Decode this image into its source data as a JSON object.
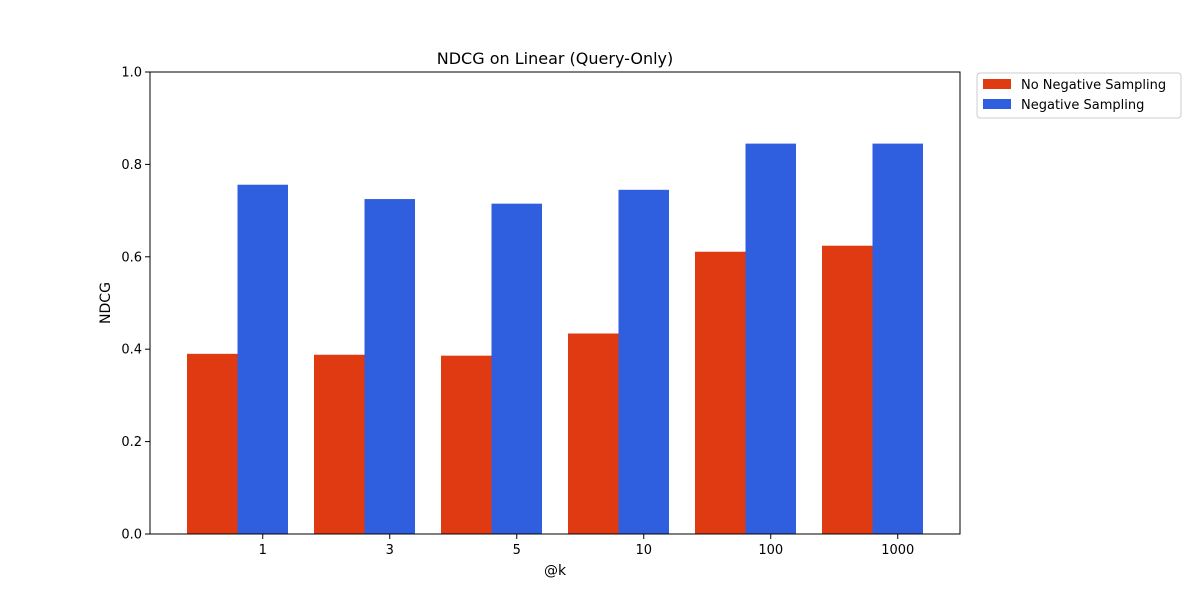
{
  "chart_data": {
    "type": "bar",
    "title": "NDCG on Linear (Query-Only)",
    "xlabel": "@k",
    "ylabel": "NDCG",
    "categories": [
      "1",
      "3",
      "5",
      "10",
      "100",
      "1000"
    ],
    "ylim": [
      0,
      1.0
    ],
    "yticks": [
      "0.0",
      "0.2",
      "0.4",
      "0.6",
      "0.8",
      "1.0"
    ],
    "grid": false,
    "legend_position": "outside-top-right",
    "series": [
      {
        "name": "No Negative Sampling",
        "color": "#e03a12",
        "values": [
          0.39,
          0.388,
          0.386,
          0.434,
          0.611,
          0.624
        ]
      },
      {
        "name": "Negative Sampling",
        "color": "#2f5fdf",
        "values": [
          0.756,
          0.725,
          0.715,
          0.745,
          0.845,
          0.845
        ]
      }
    ]
  }
}
